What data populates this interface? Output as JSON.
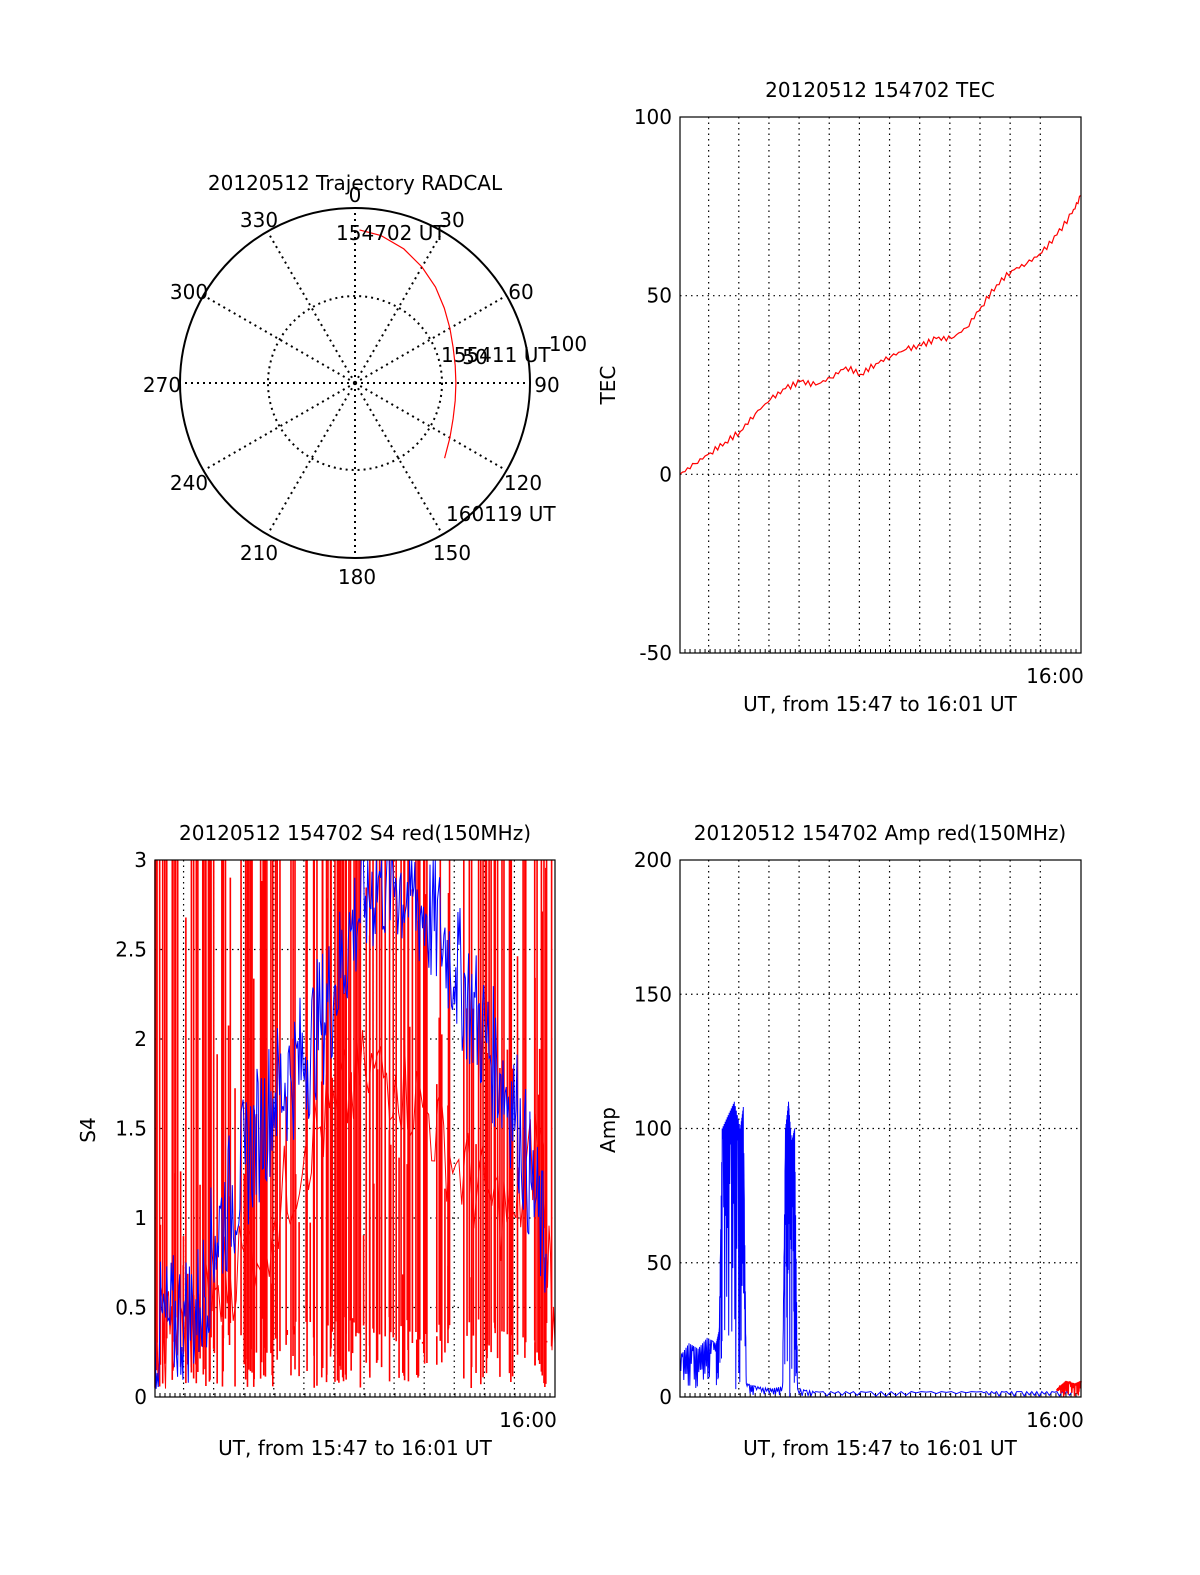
{
  "colors": {
    "red": "#ff0000",
    "blue": "#0000ff",
    "axis": "#000000",
    "grid": "#000000",
    "background": "#ffffff"
  },
  "chart_data": [
    {
      "type": "polar",
      "title": "20120512 Trajectory RADCAL",
      "azimuth_labels": [
        "0",
        "30",
        "60",
        "90",
        "120",
        "150",
        "180",
        "210",
        "240",
        "270",
        "300",
        "330"
      ],
      "radial_labels": [
        "50",
        "100"
      ],
      "grid": true,
      "series": [
        {
          "color": "red",
          "points": [
            {
              "azimuth": 1.7,
              "radius": 88
            },
            {
              "azimuth": 10,
              "radius": 86
            },
            {
              "azimuth": 20,
              "radius": 82
            },
            {
              "azimuth": 30,
              "radius": 77
            },
            {
              "azimuth": 40,
              "radius": 72
            },
            {
              "azimuth": 50,
              "radius": 67
            },
            {
              "azimuth": 60,
              "radius": 63
            },
            {
              "azimuth": 70,
              "radius": 60
            },
            {
              "azimuth": 80,
              "radius": 58.5
            },
            {
              "azimuth": 90,
              "radius": 58
            },
            {
              "azimuth": 100,
              "radius": 58.5
            },
            {
              "azimuth": 110,
              "radius": 60
            },
            {
              "azimuth": 120,
              "radius": 63
            },
            {
              "azimuth": 130,
              "radius": 67.2
            }
          ]
        }
      ],
      "annotations": [
        "154702 UT",
        "155411 UT",
        "160119 UT"
      ]
    },
    {
      "type": "line",
      "title": "20120512 154702 TEC",
      "ylabel": "TEC",
      "xlabel": "UT, from 15:47 to 16:01 UT",
      "x_tick_labels": [
        "16:00"
      ],
      "xlim_minutes": [
        0,
        13.3
      ],
      "ylim": [
        -50,
        100
      ],
      "y_ticks": [
        -50,
        0,
        50,
        100
      ],
      "grid": true,
      "series": [
        {
          "color": "red",
          "points": [
            [
              0,
              0
            ],
            [
              0.5,
              3
            ],
            [
              1,
              6
            ],
            [
              1.5,
              9
            ],
            [
              2,
              12
            ],
            [
              2.5,
              17
            ],
            [
              3,
              21
            ],
            [
              3.5,
              24
            ],
            [
              4,
              26
            ],
            [
              4.5,
              25
            ],
            [
              5,
              27
            ],
            [
              5.5,
              30
            ],
            [
              6,
              28
            ],
            [
              6.5,
              31
            ],
            [
              7,
              33
            ],
            [
              7.5,
              35
            ],
            [
              8,
              36
            ],
            [
              8.5,
              38
            ],
            [
              9,
              38
            ],
            [
              9.5,
              41
            ],
            [
              10,
              47
            ],
            [
              10.5,
              53
            ],
            [
              11,
              57
            ],
            [
              11.5,
              59
            ],
            [
              12,
              62
            ],
            [
              12.5,
              67
            ],
            [
              13,
              73
            ],
            [
              13.3,
              78
            ]
          ]
        }
      ]
    },
    {
      "type": "line",
      "title": "20120512 154702 S4 red(150MHz)",
      "ylabel": "S4",
      "xlabel": "UT, from 15:47 to 16:01 UT",
      "x_tick_labels": [
        "16:00"
      ],
      "xlim_minutes": [
        0,
        13.3
      ],
      "ylim": [
        0,
        3
      ],
      "y_ticks": [
        0,
        0.5,
        1,
        1.5,
        2,
        2.5,
        3
      ],
      "grid": true,
      "series": [
        {
          "color": "red",
          "description_of_shape": "dense vertical spikes",
          "points": [
            [
              0,
              0.3
            ],
            [
              0.5,
              0.35
            ],
            [
              1,
              0.4
            ],
            [
              1.5,
              0.4
            ],
            [
              2,
              0.6
            ],
            [
              3,
              0.8
            ],
            [
              4,
              1.0
            ],
            [
              5,
              1.4
            ],
            [
              6,
              1.6
            ],
            [
              7,
              1.8
            ],
            [
              8,
              1.8
            ],
            [
              9,
              1.6
            ],
            [
              10,
              1.3
            ],
            [
              11,
              1.1
            ],
            [
              12,
              1.0
            ],
            [
              12.8,
              1.5
            ],
            [
              13.3,
              0.3
            ]
          ]
        },
        {
          "color": "blue",
          "points": [
            [
              0,
              0.35
            ],
            [
              0.5,
              0.4
            ],
            [
              1,
              0.45
            ],
            [
              1.5,
              0.5
            ],
            [
              2,
              0.9
            ],
            [
              2.5,
              1.1
            ],
            [
              3,
              1.3
            ],
            [
              3.5,
              1.5
            ],
            [
              4,
              1.7
            ],
            [
              4.5,
              1.8
            ],
            [
              5,
              1.9
            ],
            [
              5.5,
              2.1
            ],
            [
              6,
              2.3
            ],
            [
              6.5,
              2.6
            ],
            [
              7,
              2.8
            ],
            [
              7.5,
              2.9
            ],
            [
              8,
              2.9
            ],
            [
              8.5,
              2.8
            ],
            [
              9,
              2.7
            ],
            [
              9.5,
              2.6
            ],
            [
              10,
              2.4
            ],
            [
              10.5,
              2.2
            ],
            [
              11,
              2.0
            ],
            [
              11.5,
              1.8
            ],
            [
              12,
              1.6
            ],
            [
              12.5,
              1.2
            ],
            [
              13,
              0.8
            ]
          ]
        }
      ]
    },
    {
      "type": "line",
      "title": "20120512 154702 Amp red(150MHz)",
      "ylabel": "Amp",
      "xlabel": "UT, from 15:47 to 16:01 UT",
      "x_tick_labels": [
        "16:00"
      ],
      "xlim_minutes": [
        0,
        13.3
      ],
      "ylim": [
        0,
        200
      ],
      "y_ticks": [
        0,
        50,
        100,
        150,
        200
      ],
      "grid": true,
      "series": [
        {
          "color": "blue",
          "points": [
            [
              0,
              15
            ],
            [
              0.3,
              20
            ],
            [
              0.6,
              18
            ],
            [
              0.9,
              22
            ],
            [
              1.2,
              20
            ],
            [
              1.3,
              25
            ],
            [
              1.4,
              100
            ],
            [
              1.6,
              105
            ],
            [
              1.8,
              110
            ],
            [
              2.0,
              100
            ],
            [
              2.1,
              108
            ],
            [
              2.2,
              5
            ],
            [
              2.5,
              4
            ],
            [
              3.0,
              3
            ],
            [
              3.4,
              4
            ],
            [
              3.5,
              100
            ],
            [
              3.6,
              110
            ],
            [
              3.7,
              95
            ],
            [
              3.8,
              100
            ],
            [
              3.9,
              3
            ],
            [
              4.5,
              2
            ],
            [
              6,
              2
            ],
            [
              8,
              2
            ],
            [
              10,
              2
            ],
            [
              11,
              2
            ],
            [
              12,
              2
            ],
            [
              13,
              2
            ]
          ]
        },
        {
          "color": "red",
          "points": [
            [
              12.5,
              3
            ],
            [
              12.8,
              6
            ],
            [
              13.1,
              5
            ],
            [
              13.3,
              6
            ]
          ]
        }
      ]
    }
  ]
}
